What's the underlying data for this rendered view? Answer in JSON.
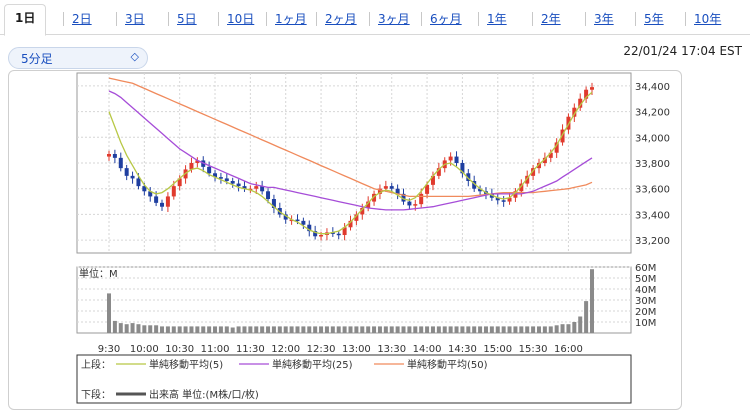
{
  "tabs": [
    {
      "label": "1日",
      "active": true
    },
    {
      "label": "2日"
    },
    {
      "label": "3日"
    },
    {
      "label": "5日"
    },
    {
      "label": "10日"
    },
    {
      "label": "1ヶ月"
    },
    {
      "label": "2ヶ月"
    },
    {
      "label": "3ヶ月"
    },
    {
      "label": "6ヶ月"
    },
    {
      "label": "1年"
    },
    {
      "label": "2年"
    },
    {
      "label": "3年"
    },
    {
      "label": "5年"
    },
    {
      "label": "10年"
    }
  ],
  "interval_select": {
    "value": "5分足"
  },
  "timestamp": "22/01/24 17:04 EST",
  "legend": {
    "upper_label": "上段：",
    "lower_label": "下段：",
    "ma5": "単純移動平均(5)",
    "ma25": "単純移動平均(25)",
    "ma50": "単純移動平均(50)",
    "volume": "出来高 単位:(M株/口/枚)"
  },
  "colors": {
    "up": "#e03a2d",
    "down": "#1f3fa0",
    "ma5": "#b8c845",
    "ma25": "#a64dd8",
    "ma50": "#f08a5c",
    "volume": "#8a8a8a",
    "accent": "#1a4fbf"
  },
  "chart_data": [
    {
      "type": "candlestick",
      "y_ticks": [
        "33,200",
        "33,400",
        "33,600",
        "33,800",
        "34,000",
        "34,200",
        "34,400"
      ],
      "ylim": [
        33100,
        34500
      ],
      "x_ticks": [
        "9:30",
        "10:00",
        "10:30",
        "11:00",
        "11:30",
        "12:00",
        "12:30",
        "13:00",
        "13:30",
        "14:00",
        "14:30",
        "15:00",
        "15:30",
        "16:00"
      ],
      "close": [
        33870,
        33840,
        33760,
        33700,
        33680,
        33620,
        33580,
        33540,
        33490,
        33460,
        33540,
        33620,
        33680,
        33750,
        33800,
        33820,
        33770,
        33720,
        33690,
        33680,
        33660,
        33640,
        33620,
        33600,
        33600,
        33620,
        33580,
        33520,
        33450,
        33400,
        33360,
        33360,
        33350,
        33320,
        33270,
        33230,
        33240,
        33260,
        33250,
        33240,
        33300,
        33350,
        33400,
        33450,
        33500,
        33560,
        33600,
        33620,
        33600,
        33560,
        33500,
        33470,
        33480,
        33560,
        33630,
        33700,
        33760,
        33820,
        33850,
        33800,
        33720,
        33660,
        33600,
        33580,
        33560,
        33530,
        33510,
        33500,
        33530,
        33580,
        33640,
        33700,
        33760,
        33800,
        33840,
        33880,
        33960,
        34060,
        34160,
        34230,
        34300,
        34370,
        34390
      ],
      "ma5": [
        34200,
        34080,
        33960,
        33860,
        33780,
        33700,
        33630,
        33580,
        33560,
        33570,
        33600,
        33640,
        33680,
        33720,
        33750,
        33760,
        33740,
        33710,
        33690,
        33670,
        33650,
        33630,
        33610,
        33600,
        33590,
        33570,
        33540,
        33500,
        33460,
        33420,
        33390,
        33360,
        33340,
        33310,
        33280,
        33260,
        33250,
        33250,
        33260,
        33270,
        33300,
        33340,
        33390,
        33440,
        33490,
        33540,
        33570,
        33590,
        33580,
        33550,
        33520,
        33510,
        33530,
        33580,
        33640,
        33700,
        33750,
        33790,
        33800,
        33770,
        33730,
        33680,
        33640,
        33600,
        33570,
        33550,
        33530,
        33520,
        33530,
        33570,
        33620,
        33680,
        33740,
        33790,
        33830,
        33880,
        33940,
        34020,
        34100,
        34180,
        34250,
        34310,
        34350
      ],
      "ma25": [
        34360,
        34340,
        34310,
        34270,
        34230,
        34190,
        34150,
        34110,
        34070,
        34030,
        33990,
        33950,
        33910,
        33880,
        33850,
        33820,
        33800,
        33780,
        33760,
        33740,
        33720,
        33700,
        33680,
        33660,
        33640,
        33630,
        33620,
        33610,
        33610,
        33600,
        33590,
        33580,
        33570,
        33560,
        33550,
        33540,
        33530,
        33520,
        33510,
        33500,
        33490,
        33480,
        33470,
        33460,
        33450,
        33445,
        33440,
        33435,
        33435,
        33435,
        33435,
        33440,
        33445,
        33450,
        33455,
        33460,
        33470,
        33480,
        33490,
        33500,
        33510,
        33520,
        33530,
        33540,
        33550,
        33560,
        33560,
        33560,
        33560,
        33560,
        33560,
        33570,
        33580,
        33600,
        33620,
        33640,
        33660,
        33690,
        33720,
        33750,
        33780,
        33810,
        33840
      ],
      "ma50": [
        34460,
        34450,
        34440,
        34430,
        34420,
        34400,
        34380,
        34360,
        34340,
        34320,
        34300,
        34280,
        34260,
        34240,
        34220,
        34200,
        34180,
        34160,
        34140,
        34120,
        34100,
        34080,
        34060,
        34040,
        34020,
        34000,
        33980,
        33960,
        33940,
        33920,
        33900,
        33880,
        33860,
        33840,
        33820,
        33800,
        33780,
        33760,
        33740,
        33720,
        33700,
        33680,
        33660,
        33640,
        33620,
        33600,
        33590,
        33580,
        33570,
        33560,
        33550,
        33540,
        33540,
        33540,
        33540,
        33540,
        33540,
        33540,
        33540,
        33540,
        33540,
        33540,
        33545,
        33550,
        33555,
        33560,
        33565,
        33570,
        33570,
        33570,
        33570,
        33570,
        33570,
        33575,
        33580,
        33585,
        33590,
        33595,
        33600,
        33610,
        33620,
        33630,
        33650
      ]
    },
    {
      "type": "bar",
      "unit_label": "単位：M",
      "y_ticks": [
        "10M",
        "20M",
        "30M",
        "40M",
        "50M",
        "60M"
      ],
      "ylim": [
        0,
        60
      ],
      "values": [
        36,
        11,
        9,
        8,
        9,
        8,
        7,
        7,
        7,
        6,
        6,
        6,
        6,
        6,
        6,
        6,
        6,
        6,
        6,
        6,
        6,
        5,
        6,
        6,
        6,
        6,
        6,
        6,
        6,
        6,
        6,
        6,
        6,
        6,
        6,
        6,
        6,
        6,
        6,
        6,
        6,
        6,
        6,
        6,
        6,
        6,
        6,
        6,
        6,
        6,
        6,
        6,
        6,
        6,
        6,
        6,
        6,
        6,
        6,
        6,
        6,
        6,
        6,
        6,
        6,
        6,
        6,
        6,
        6,
        6,
        6,
        6,
        6,
        6,
        6,
        6,
        7,
        8,
        8,
        10,
        15,
        29,
        58
      ]
    }
  ]
}
